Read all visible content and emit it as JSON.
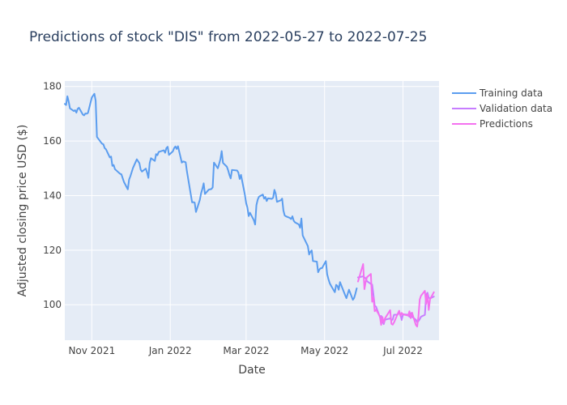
{
  "chart_data": {
    "type": "line",
    "title": "Predictions of stock \"DIS\" from 2022-05-27 to 2022-07-25",
    "xlabel": "Date",
    "ylabel": "Adjusted closing price USD ($)",
    "x_range": [
      "2021-10-11",
      "2022-07-29"
    ],
    "ylim": [
      87,
      182
    ],
    "x_ticks": [
      {
        "date": "2021-11-01",
        "label": "Nov 2021"
      },
      {
        "date": "2022-01-01",
        "label": "Jan 2022"
      },
      {
        "date": "2022-03-01",
        "label": "Mar 2022"
      },
      {
        "date": "2022-05-01",
        "label": "May 2022"
      },
      {
        "date": "2022-07-01",
        "label": "Jul 2022"
      }
    ],
    "y_ticks": [
      100,
      120,
      140,
      160,
      180
    ],
    "grid": true,
    "legend_position": "top-right",
    "colors": {
      "plot_bg": "#e5ecf6",
      "grid": "#ffffff"
    },
    "series": [
      {
        "name": "Training data",
        "color": "#5b9def",
        "points": [
          [
            "2021-10-11",
            173.6
          ],
          [
            "2021-10-12",
            173.2
          ],
          [
            "2021-10-13",
            176.4
          ],
          [
            "2021-10-14",
            174.5
          ],
          [
            "2021-10-15",
            172.0
          ],
          [
            "2021-10-18",
            171.0
          ],
          [
            "2021-10-19",
            171.3
          ],
          [
            "2021-10-20",
            170.4
          ],
          [
            "2021-10-21",
            171.8
          ],
          [
            "2021-10-22",
            172.2
          ],
          [
            "2021-10-25",
            169.7
          ],
          [
            "2021-10-26",
            169.4
          ],
          [
            "2021-10-27",
            170.1
          ],
          [
            "2021-10-28",
            170.0
          ],
          [
            "2021-10-29",
            170.3
          ],
          [
            "2021-11-01",
            175.9
          ],
          [
            "2021-11-02",
            176.7
          ],
          [
            "2021-11-03",
            177.3
          ],
          [
            "2021-11-04",
            174.8
          ],
          [
            "2021-11-05",
            161.5
          ],
          [
            "2021-11-08",
            159.6
          ],
          [
            "2021-11-09",
            159.0
          ],
          [
            "2021-11-10",
            158.8
          ],
          [
            "2021-11-11",
            157.4
          ],
          [
            "2021-11-12",
            157.0
          ],
          [
            "2021-11-15",
            154.0
          ],
          [
            "2021-11-16",
            154.3
          ],
          [
            "2021-11-17",
            150.9
          ],
          [
            "2021-11-18",
            151.2
          ],
          [
            "2021-11-19",
            149.7
          ],
          [
            "2021-11-22",
            148.4
          ],
          [
            "2021-11-23",
            148.0
          ],
          [
            "2021-11-24",
            147.8
          ],
          [
            "2021-11-26",
            145.0
          ],
          [
            "2021-11-29",
            142.3
          ],
          [
            "2021-11-30",
            145.9
          ],
          [
            "2021-12-01",
            147.1
          ],
          [
            "2021-12-02",
            148.6
          ],
          [
            "2021-12-03",
            150.1
          ],
          [
            "2021-12-06",
            153.3
          ],
          [
            "2021-12-07",
            152.6
          ],
          [
            "2021-12-08",
            151.9
          ],
          [
            "2021-12-09",
            149.5
          ],
          [
            "2021-12-10",
            148.8
          ],
          [
            "2021-12-13",
            149.9
          ],
          [
            "2021-12-14",
            148.4
          ],
          [
            "2021-12-15",
            146.5
          ],
          [
            "2021-12-16",
            151.9
          ],
          [
            "2021-12-17",
            153.7
          ],
          [
            "2021-12-20",
            152.7
          ],
          [
            "2021-12-21",
            155.2
          ],
          [
            "2021-12-22",
            154.8
          ],
          [
            "2021-12-23",
            156.0
          ],
          [
            "2021-12-27",
            156.6
          ],
          [
            "2021-12-28",
            155.7
          ],
          [
            "2021-12-29",
            157.4
          ],
          [
            "2021-12-30",
            157.9
          ],
          [
            "2021-12-31",
            154.9
          ],
          [
            "2022-01-03",
            156.2
          ],
          [
            "2022-01-04",
            157.4
          ],
          [
            "2022-01-05",
            158.0
          ],
          [
            "2022-01-06",
            157.1
          ],
          [
            "2022-01-07",
            158.1
          ],
          [
            "2022-01-10",
            152.1
          ],
          [
            "2022-01-11",
            152.5
          ],
          [
            "2022-01-12",
            152.4
          ],
          [
            "2022-01-13",
            152.2
          ],
          [
            "2022-01-14",
            148.8
          ],
          [
            "2022-01-18",
            137.5
          ],
          [
            "2022-01-19",
            137.6
          ],
          [
            "2022-01-20",
            137.4
          ],
          [
            "2022-01-21",
            134.0
          ],
          [
            "2022-01-24",
            138.4
          ],
          [
            "2022-01-25",
            140.9
          ],
          [
            "2022-01-26",
            142.5
          ],
          [
            "2022-01-27",
            144.5
          ],
          [
            "2022-01-28",
            140.6
          ],
          [
            "2022-01-31",
            142.2
          ],
          [
            "2022-02-01",
            142.3
          ],
          [
            "2022-02-02",
            142.4
          ],
          [
            "2022-02-03",
            143.0
          ],
          [
            "2022-02-04",
            152.1
          ],
          [
            "2022-02-07",
            150.0
          ],
          [
            "2022-02-08",
            151.6
          ],
          [
            "2022-02-09",
            153.3
          ],
          [
            "2022-02-10",
            156.3
          ],
          [
            "2022-02-11",
            152.0
          ],
          [
            "2022-02-14",
            150.6
          ],
          [
            "2022-02-15",
            149.3
          ],
          [
            "2022-02-16",
            147.6
          ],
          [
            "2022-02-17",
            146.3
          ],
          [
            "2022-02-18",
            149.4
          ],
          [
            "2022-02-22",
            149.2
          ],
          [
            "2022-02-23",
            148.4
          ],
          [
            "2022-02-24",
            146.1
          ],
          [
            "2022-02-25",
            147.6
          ],
          [
            "2022-02-28",
            140.4
          ],
          [
            "2022-03-01",
            137.3
          ],
          [
            "2022-03-02",
            135.6
          ],
          [
            "2022-03-03",
            132.5
          ],
          [
            "2022-03-04",
            133.7
          ],
          [
            "2022-03-07",
            131.0
          ],
          [
            "2022-03-08",
            129.4
          ],
          [
            "2022-03-09",
            136.5
          ],
          [
            "2022-03-10",
            138.5
          ],
          [
            "2022-03-11",
            139.6
          ],
          [
            "2022-03-14",
            140.4
          ],
          [
            "2022-03-15",
            138.9
          ],
          [
            "2022-03-16",
            139.5
          ],
          [
            "2022-03-17",
            138.0
          ],
          [
            "2022-03-18",
            139.0
          ],
          [
            "2022-03-21",
            138.8
          ],
          [
            "2022-03-22",
            139.2
          ],
          [
            "2022-03-23",
            142.1
          ],
          [
            "2022-03-24",
            140.7
          ],
          [
            "2022-03-25",
            137.7
          ],
          [
            "2022-03-28",
            138.3
          ],
          [
            "2022-03-29",
            138.9
          ],
          [
            "2022-03-30",
            134.5
          ],
          [
            "2022-03-31",
            132.7
          ],
          [
            "2022-04-01",
            132.4
          ],
          [
            "2022-04-04",
            131.8
          ],
          [
            "2022-04-05",
            131.4
          ],
          [
            "2022-04-06",
            132.4
          ],
          [
            "2022-04-07",
            130.8
          ],
          [
            "2022-04-08",
            130.2
          ],
          [
            "2022-04-11",
            129.4
          ],
          [
            "2022-04-12",
            128.2
          ],
          [
            "2022-04-13",
            131.6
          ],
          [
            "2022-04-14",
            125.4
          ],
          [
            "2022-04-18",
            121.5
          ],
          [
            "2022-04-19",
            118.4
          ],
          [
            "2022-04-20",
            119.4
          ],
          [
            "2022-04-21",
            119.9
          ],
          [
            "2022-04-22",
            116.0
          ],
          [
            "2022-04-25",
            115.8
          ],
          [
            "2022-04-26",
            111.9
          ],
          [
            "2022-04-27",
            112.9
          ],
          [
            "2022-04-28",
            113.4
          ],
          [
            "2022-04-29",
            113.4
          ],
          [
            "2022-05-02",
            116.0
          ],
          [
            "2022-05-03",
            111.2
          ],
          [
            "2022-05-04",
            109.4
          ],
          [
            "2022-05-05",
            107.9
          ],
          [
            "2022-05-06",
            107.0
          ],
          [
            "2022-05-09",
            104.6
          ],
          [
            "2022-05-10",
            107.3
          ],
          [
            "2022-05-11",
            106.9
          ],
          [
            "2022-05-12",
            105.5
          ],
          [
            "2022-05-13",
            108.3
          ],
          [
            "2022-05-16",
            104.7
          ],
          [
            "2022-05-17",
            103.5
          ],
          [
            "2022-05-18",
            102.4
          ],
          [
            "2022-05-19",
            104.0
          ],
          [
            "2022-05-20",
            105.5
          ],
          [
            "2022-05-23",
            101.8
          ],
          [
            "2022-05-24",
            102.5
          ],
          [
            "2022-05-25",
            104.1
          ],
          [
            "2022-05-26",
            106.0
          ]
        ]
      },
      {
        "name": "Validation data",
        "color": "#c77dff",
        "points": [
          [
            "2022-05-27",
            110.0
          ],
          [
            "2022-05-31",
            110.4
          ],
          [
            "2022-06-01",
            110.0
          ],
          [
            "2022-06-02",
            109.7
          ],
          [
            "2022-06-03",
            108.6
          ],
          [
            "2022-06-06",
            107.6
          ],
          [
            "2022-06-07",
            107.4
          ],
          [
            "2022-06-08",
            103.7
          ],
          [
            "2022-06-09",
            99.6
          ],
          [
            "2022-06-10",
            99.3
          ],
          [
            "2022-06-13",
            95.5
          ],
          [
            "2022-06-14",
            95.9
          ],
          [
            "2022-06-15",
            93.8
          ],
          [
            "2022-06-16",
            92.9
          ],
          [
            "2022-06-17",
            94.5
          ],
          [
            "2022-06-21",
            95.0
          ],
          [
            "2022-06-22",
            94.3
          ],
          [
            "2022-06-23",
            94.6
          ],
          [
            "2022-06-24",
            96.3
          ],
          [
            "2022-06-27",
            96.4
          ],
          [
            "2022-06-28",
            97.3
          ],
          [
            "2022-06-29",
            96.5
          ],
          [
            "2022-06-30",
            94.4
          ],
          [
            "2022-07-01",
            96.5
          ],
          [
            "2022-07-05",
            96.3
          ],
          [
            "2022-07-06",
            95.6
          ],
          [
            "2022-07-07",
            96.9
          ],
          [
            "2022-07-08",
            95.6
          ],
          [
            "2022-07-11",
            94.5
          ],
          [
            "2022-07-12",
            93.6
          ],
          [
            "2022-07-13",
            94.0
          ],
          [
            "2022-07-14",
            94.7
          ],
          [
            "2022-07-15",
            95.6
          ],
          [
            "2022-07-18",
            96.3
          ],
          [
            "2022-07-19",
            103.5
          ],
          [
            "2022-07-20",
            104.4
          ],
          [
            "2022-07-21",
            102.6
          ],
          [
            "2022-07-22",
            102.3
          ],
          [
            "2022-07-25",
            103.0
          ]
        ]
      },
      {
        "name": "Predictions",
        "color": "#f472f0",
        "points": [
          [
            "2022-05-27",
            108.5
          ],
          [
            "2022-05-31",
            114.9
          ],
          [
            "2022-06-01",
            105.7
          ],
          [
            "2022-06-02",
            108.5
          ],
          [
            "2022-06-03",
            110.1
          ],
          [
            "2022-06-06",
            111.3
          ],
          [
            "2022-06-07",
            101.1
          ],
          [
            "2022-06-08",
            102.6
          ],
          [
            "2022-06-09",
            97.6
          ],
          [
            "2022-06-10",
            98.2
          ],
          [
            "2022-06-13",
            95.8
          ],
          [
            "2022-06-14",
            92.6
          ],
          [
            "2022-06-15",
            95.5
          ],
          [
            "2022-06-16",
            93.4
          ],
          [
            "2022-06-17",
            95.0
          ],
          [
            "2022-06-21",
            98.0
          ],
          [
            "2022-06-22",
            93.0
          ],
          [
            "2022-06-23",
            92.7
          ],
          [
            "2022-06-24",
            93.5
          ],
          [
            "2022-06-27",
            96.8
          ],
          [
            "2022-06-28",
            97.8
          ],
          [
            "2022-06-29",
            95.9
          ],
          [
            "2022-06-30",
            97.0
          ],
          [
            "2022-07-01",
            96.5
          ],
          [
            "2022-07-05",
            96.0
          ],
          [
            "2022-07-06",
            97.6
          ],
          [
            "2022-07-07",
            95.1
          ],
          [
            "2022-07-08",
            97.1
          ],
          [
            "2022-07-11",
            92.6
          ],
          [
            "2022-07-12",
            92.0
          ],
          [
            "2022-07-13",
            95.7
          ],
          [
            "2022-07-14",
            101.9
          ],
          [
            "2022-07-15",
            103.3
          ],
          [
            "2022-07-18",
            105.1
          ],
          [
            "2022-07-19",
            100.3
          ],
          [
            "2022-07-20",
            103.8
          ],
          [
            "2022-07-21",
            98.1
          ],
          [
            "2022-07-22",
            102.0
          ],
          [
            "2022-07-25",
            104.6
          ]
        ]
      }
    ]
  }
}
